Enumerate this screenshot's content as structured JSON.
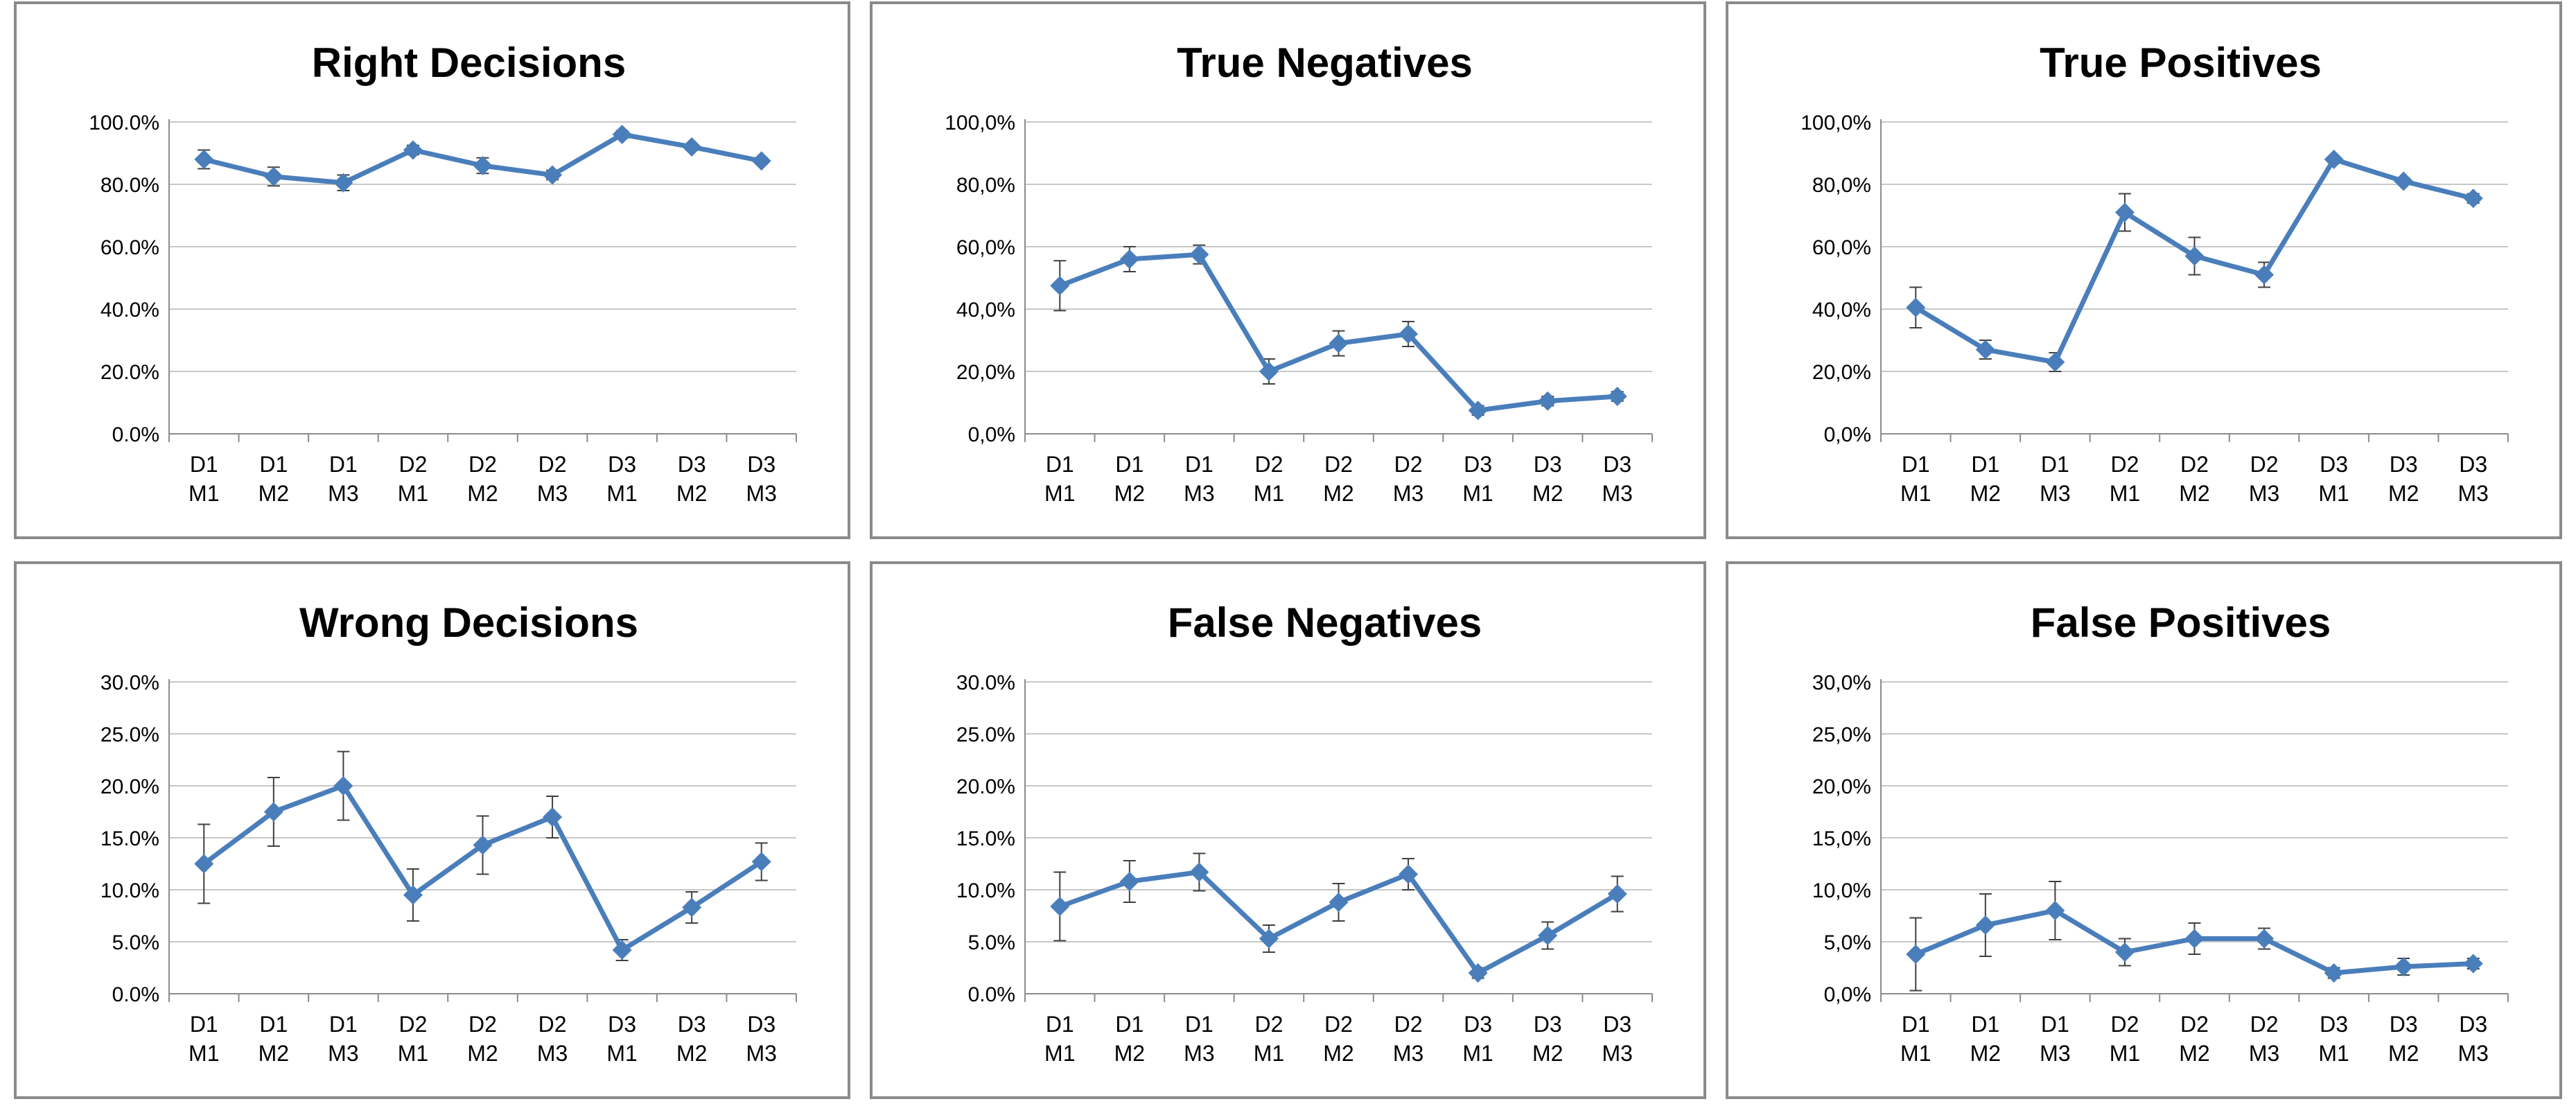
{
  "colors": {
    "series": "#4a7ebb",
    "grid": "#c8c8c8",
    "axis": "#8c8c8c",
    "errorbar": "#404040",
    "border": "#8a8a8a"
  },
  "chart_data": [
    {
      "type": "line",
      "title": "Right Decisions",
      "categories": [
        "D1 M1",
        "D1 M2",
        "D1 M3",
        "D2 M1",
        "D2 M2",
        "D2 M3",
        "D3 M1",
        "D3 M2",
        "D3 M3"
      ],
      "values": [
        88,
        82.5,
        80.5,
        91,
        86,
        83,
        96,
        92,
        87.5
      ],
      "errors": [
        3,
        3,
        2.5,
        1.5,
        2.5,
        1.5,
        1.2,
        1,
        1
      ],
      "ylim": [
        0,
        100
      ],
      "yticks": [
        "0.0%",
        "20.0%",
        "40.0%",
        "60.0%",
        "80.0%",
        "100.0%"
      ],
      "grid": true
    },
    {
      "type": "line",
      "title": "True Negatives",
      "categories": [
        "D1 M1",
        "D1 M2",
        "D1 M3",
        "D2 M1",
        "D2 M2",
        "D2 M3",
        "D3 M1",
        "D3 M2",
        "D3 M3"
      ],
      "values": [
        47.5,
        56,
        57.5,
        20,
        29,
        32,
        7.5,
        10.5,
        12
      ],
      "errors": [
        8,
        4,
        3,
        4,
        4,
        4,
        1.5,
        1.5,
        1.5
      ],
      "ylim": [
        0,
        100
      ],
      "yticks": [
        "0,0%",
        "20,0%",
        "40,0%",
        "60,0%",
        "80,0%",
        "100,0%"
      ],
      "grid": true
    },
    {
      "type": "line",
      "title": "True Positives",
      "categories": [
        "D1 M1",
        "D1 M2",
        "D1 M3",
        "D2 M1",
        "D2 M2",
        "D2 M3",
        "D3 M1",
        "D3 M2",
        "D3 M3"
      ],
      "values": [
        40.5,
        27,
        23,
        71,
        57,
        51,
        88,
        81,
        75.5
      ],
      "errors": [
        6.5,
        3,
        3,
        6,
        6,
        4,
        1,
        1,
        1.5
      ],
      "ylim": [
        0,
        100
      ],
      "yticks": [
        "0,0%",
        "20,0%",
        "40,0%",
        "60,0%",
        "80,0%",
        "100,0%"
      ],
      "grid": true
    },
    {
      "type": "line",
      "title": "Wrong Decisions",
      "categories": [
        "D1 M1",
        "D1 M2",
        "D1 M3",
        "D2 M1",
        "D2 M2",
        "D2 M3",
        "D3 M1",
        "D3 M2",
        "D3 M3"
      ],
      "values": [
        12.5,
        17.5,
        20,
        9.5,
        14.3,
        17,
        4.2,
        8.3,
        12.7
      ],
      "errors": [
        3.8,
        3.3,
        3.3,
        2.5,
        2.8,
        2,
        1,
        1.5,
        1.8
      ],
      "ylim": [
        0,
        30
      ],
      "yticks": [
        "0.0%",
        "5.0%",
        "10.0%",
        "15.0%",
        "20.0%",
        "25.0%",
        "30.0%"
      ],
      "grid": true
    },
    {
      "type": "line",
      "title": "False Negatives",
      "categories": [
        "D1 M1",
        "D1 M2",
        "D1 M3",
        "D2 M1",
        "D2 M2",
        "D2 M3",
        "D3 M1",
        "D3 M2",
        "D3 M3"
      ],
      "values": [
        8.4,
        10.8,
        11.7,
        5.3,
        8.8,
        11.5,
        2,
        5.6,
        9.6
      ],
      "errors": [
        3.3,
        2,
        1.8,
        1.3,
        1.8,
        1.5,
        0.5,
        1.3,
        1.7
      ],
      "ylim": [
        0,
        30
      ],
      "yticks": [
        "0.0%",
        "5.0%",
        "10.0%",
        "15.0%",
        "20.0%",
        "25.0%",
        "30.0%"
      ],
      "grid": true
    },
    {
      "type": "line",
      "title": "False Positives",
      "categories": [
        "D1 M1",
        "D1 M2",
        "D1 M3",
        "D2 M1",
        "D2 M2",
        "D2 M3",
        "D3 M1",
        "D3 M2",
        "D3 M3"
      ],
      "values": [
        3.8,
        6.6,
        8,
        4,
        5.3,
        5.3,
        2,
        2.6,
        2.9
      ],
      "errors": [
        3.5,
        3,
        2.8,
        1.3,
        1.5,
        1,
        0.5,
        0.8,
        0.5
      ],
      "ylim": [
        0,
        30
      ],
      "yticks": [
        "0,0%",
        "5,0%",
        "10,0%",
        "15,0%",
        "20,0%",
        "25,0%",
        "30,0%"
      ],
      "grid": true
    }
  ]
}
